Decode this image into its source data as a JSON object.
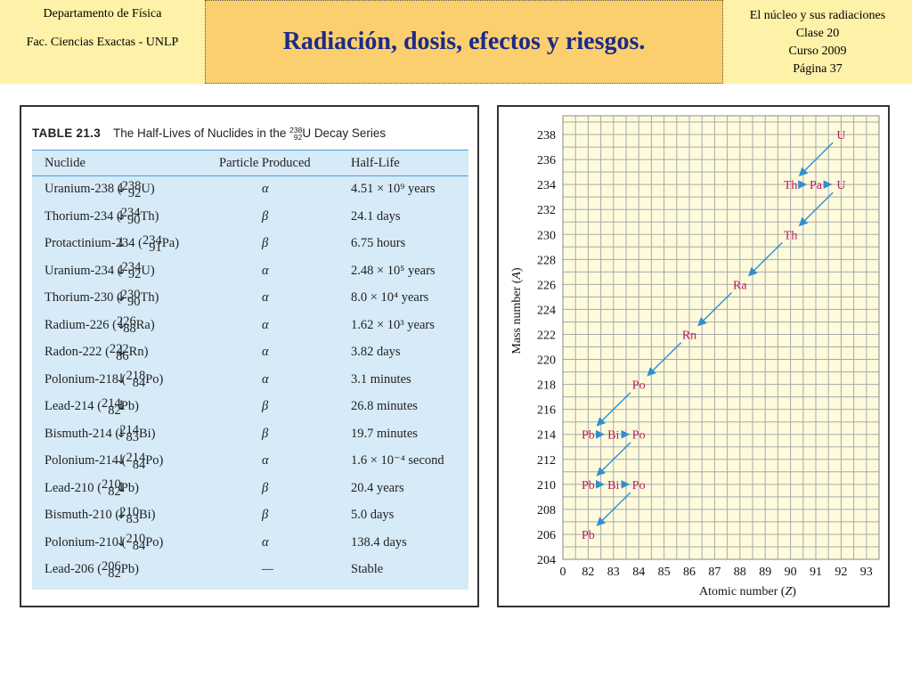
{
  "header": {
    "left_line1": "Departamento de Física",
    "left_line2": "Fac. Ciencias Exactas - UNLP",
    "title": "Radiación, dosis, efectos y riesgos.",
    "right_lines": [
      "El núcleo y sus radiaciones",
      "Clase 20",
      "Curso 2009",
      "Página 37"
    ]
  },
  "table": {
    "number": "TABLE 21.3",
    "caption_before": "The Half-Lives of Nuclides in the ",
    "caption_A": "238",
    "caption_Z": "92",
    "caption_after": "U Decay Series",
    "headers": [
      "Nuclide",
      "Particle Produced",
      "Half-Life"
    ],
    "rows": [
      {
        "name": "Uranium-238",
        "A": "238",
        "Z": "92",
        "sym": "U",
        "particle": "α",
        "half_life": "4.51 × 10⁹ years"
      },
      {
        "name": "Thorium-234",
        "A": "234",
        "Z": "90",
        "sym": "Th",
        "particle": "β",
        "half_life": "24.1 days"
      },
      {
        "name": "Protactinium-234",
        "A": "234",
        "Z": "91",
        "sym": "Pa",
        "particle": "β",
        "half_life": "6.75 hours"
      },
      {
        "name": "Uranium-234",
        "A": "234",
        "Z": "92",
        "sym": "U",
        "particle": "α",
        "half_life": "2.48 × 10⁵ years"
      },
      {
        "name": "Thorium-230",
        "A": "230",
        "Z": "90",
        "sym": "Th",
        "particle": "α",
        "half_life": "8.0 × 10⁴ years"
      },
      {
        "name": "Radium-226",
        "A": "226",
        "Z": "88",
        "sym": "Ra",
        "particle": "α",
        "half_life": "1.62 × 10³ years"
      },
      {
        "name": "Radon-222",
        "A": "222",
        "Z": "86",
        "sym": "Rn",
        "particle": "α",
        "half_life": "3.82 days"
      },
      {
        "name": "Polonium-218",
        "A": "218",
        "Z": "84",
        "sym": "Po",
        "particle": "α",
        "half_life": "3.1 minutes"
      },
      {
        "name": "Lead-214",
        "A": "214",
        "Z": "82",
        "sym": "Pb",
        "particle": "β",
        "half_life": "26.8 minutes"
      },
      {
        "name": "Bismuth-214",
        "A": "214",
        "Z": "83",
        "sym": "Bi",
        "particle": "β",
        "half_life": "19.7 minutes"
      },
      {
        "name": "Polonium-214",
        "A": "214",
        "Z": "84",
        "sym": "Po",
        "particle": "α",
        "half_life": "1.6 × 10⁻⁴ second"
      },
      {
        "name": "Lead-210",
        "A": "210",
        "Z": "82",
        "sym": "Pb",
        "particle": "β",
        "half_life": "20.4 years"
      },
      {
        "name": "Bismuth-210",
        "A": "210",
        "Z": "83",
        "sym": "Bi",
        "particle": "β",
        "half_life": "5.0 days"
      },
      {
        "name": "Polonium-210",
        "A": "210",
        "Z": "84",
        "sym": "Po",
        "particle": "α",
        "half_life": "138.4 days"
      },
      {
        "name": "Lead-206",
        "A": "206",
        "Z": "82",
        "sym": "Pb",
        "particle": "—",
        "half_life": "Stable"
      }
    ]
  },
  "chart_data": {
    "type": "scatter",
    "xlabel_text": "Atomic number (",
    "xlabel_var": "Z",
    "ylabel_text": "Mass number (",
    "ylabel_var": "A",
    "x_ticks": [
      "0",
      "82",
      "83",
      "84",
      "85",
      "86",
      "87",
      "88",
      "89",
      "90",
      "91",
      "92",
      "93"
    ],
    "x_tick_values": [
      81,
      82,
      83,
      84,
      85,
      86,
      87,
      88,
      89,
      90,
      91,
      92,
      93
    ],
    "y_ticks": [
      204,
      206,
      208,
      210,
      212,
      214,
      216,
      218,
      220,
      222,
      224,
      226,
      228,
      230,
      232,
      234,
      236,
      238
    ],
    "xlim": [
      81,
      93.5
    ],
    "ylim": [
      204,
      239.5
    ],
    "grid": true,
    "point_color": "#c0185a",
    "arrow_color": "#2f8fd0",
    "points": [
      {
        "label": "U",
        "z": 92,
        "a": 238
      },
      {
        "label": "Th",
        "z": 90,
        "a": 234
      },
      {
        "label": "Pa",
        "z": 91,
        "a": 234
      },
      {
        "label": "U",
        "z": 92,
        "a": 234
      },
      {
        "label": "Th",
        "z": 90,
        "a": 230
      },
      {
        "label": "Ra",
        "z": 88,
        "a": 226
      },
      {
        "label": "Rn",
        "z": 86,
        "a": 222
      },
      {
        "label": "Po",
        "z": 84,
        "a": 218
      },
      {
        "label": "Pb",
        "z": 82,
        "a": 214
      },
      {
        "label": "Bi",
        "z": 83,
        "a": 214
      },
      {
        "label": "Po",
        "z": 84,
        "a": 214
      },
      {
        "label": "Pb",
        "z": 82,
        "a": 210
      },
      {
        "label": "Bi",
        "z": 83,
        "a": 210
      },
      {
        "label": "Po",
        "z": 84,
        "a": 210
      },
      {
        "label": "Pb",
        "z": 82,
        "a": 206
      }
    ],
    "decays": [
      {
        "from": 0,
        "to": 1,
        "kind": "alpha"
      },
      {
        "from": 1,
        "to": 2,
        "kind": "beta"
      },
      {
        "from": 2,
        "to": 3,
        "kind": "beta"
      },
      {
        "from": 3,
        "to": 4,
        "kind": "alpha"
      },
      {
        "from": 4,
        "to": 5,
        "kind": "alpha"
      },
      {
        "from": 5,
        "to": 6,
        "kind": "alpha"
      },
      {
        "from": 6,
        "to": 7,
        "kind": "alpha"
      },
      {
        "from": 7,
        "to": 8,
        "kind": "alpha"
      },
      {
        "from": 8,
        "to": 9,
        "kind": "beta"
      },
      {
        "from": 9,
        "to": 10,
        "kind": "beta"
      },
      {
        "from": 10,
        "to": 11,
        "kind": "alpha"
      },
      {
        "from": 11,
        "to": 12,
        "kind": "beta"
      },
      {
        "from": 12,
        "to": 13,
        "kind": "beta"
      },
      {
        "from": 13,
        "to": 14,
        "kind": "alpha"
      }
    ]
  }
}
